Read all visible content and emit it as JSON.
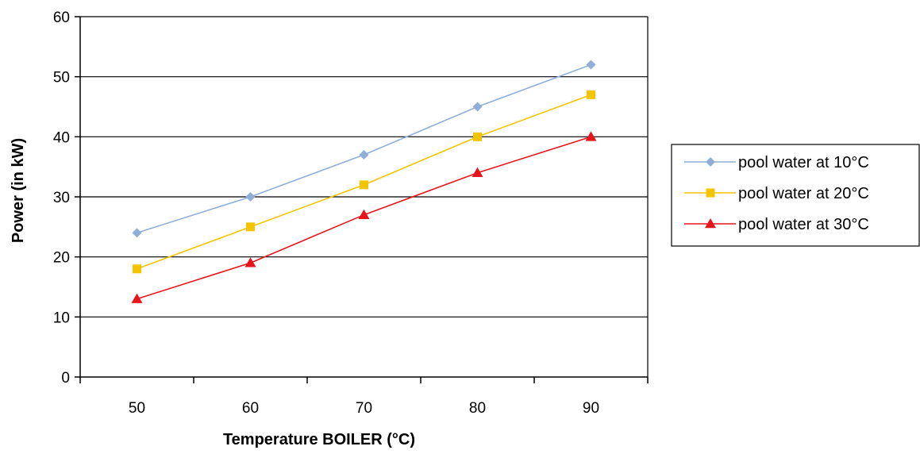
{
  "chart_data": {
    "type": "line",
    "title": "",
    "xlabel": "Temperature BOILER (°C)",
    "ylabel": "Power (in kW)",
    "x": [
      50,
      60,
      70,
      80,
      90
    ],
    "xlim": [
      45,
      95
    ],
    "ylim": [
      0,
      60
    ],
    "y_ticks": [
      0,
      10,
      20,
      30,
      40,
      50,
      60
    ],
    "x_tick_labels": [
      "50",
      "60",
      "70",
      "80",
      "90"
    ],
    "y_tick_labels": [
      "0",
      "10",
      "20",
      "30",
      "40",
      "50",
      "60"
    ],
    "grid": "horizontal",
    "legend_position": "right",
    "series": [
      {
        "name": "pool water at 10°C",
        "values": [
          24,
          30,
          37,
          45,
          52
        ],
        "color": "#8fafd9",
        "marker": "diamond"
      },
      {
        "name": "pool water at 20°C",
        "values": [
          18,
          25,
          32,
          40,
          47
        ],
        "color": "#f5c400",
        "marker": "square"
      },
      {
        "name": "pool water at 30°C",
        "values": [
          13,
          19,
          27,
          34,
          40
        ],
        "color": "#e8141b",
        "marker": "triangle"
      }
    ]
  }
}
